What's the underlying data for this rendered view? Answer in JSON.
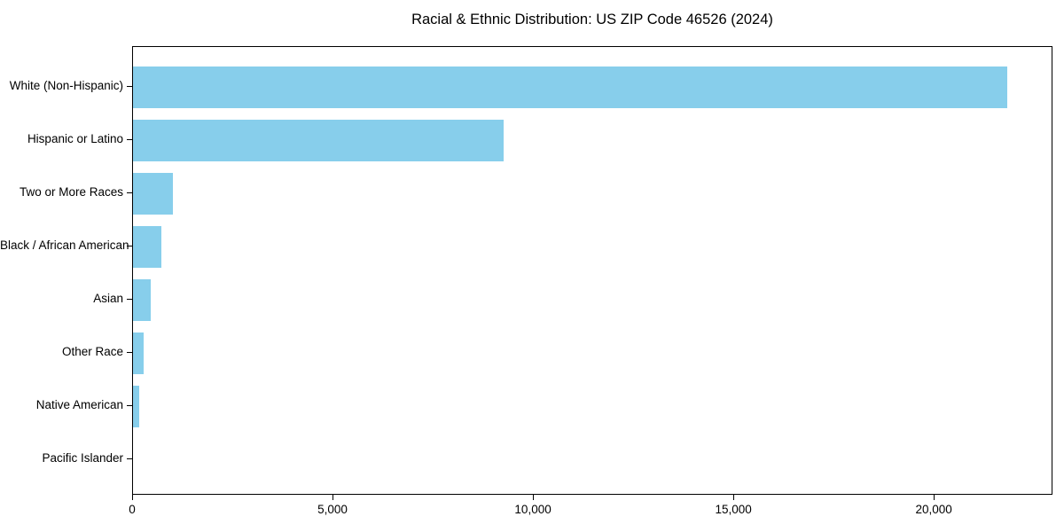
{
  "chart_data": {
    "type": "bar",
    "orientation": "horizontal",
    "title": "Racial & Ethnic Distribution: US ZIP Code 46526 (2024)",
    "categories": [
      "White (Non-Hispanic)",
      "Hispanic or Latino",
      "Two or More Races",
      "Black / African American",
      "Asian",
      "Other Race",
      "Native American",
      "Pacific Islander"
    ],
    "values": [
      21800,
      9250,
      1000,
      700,
      440,
      270,
      150,
      0
    ],
    "xlabel": "",
    "ylabel": "",
    "xlim": [
      0,
      22960
    ],
    "xticks": [
      0,
      5000,
      10000,
      15000,
      20000
    ],
    "xtick_labels": [
      "0",
      "5,000",
      "10,000",
      "15,000",
      "20,000"
    ],
    "bar_color": "#87CEEB",
    "frame_color": "#000000",
    "background_color": "#ffffff",
    "grid": false,
    "legend": null
  }
}
